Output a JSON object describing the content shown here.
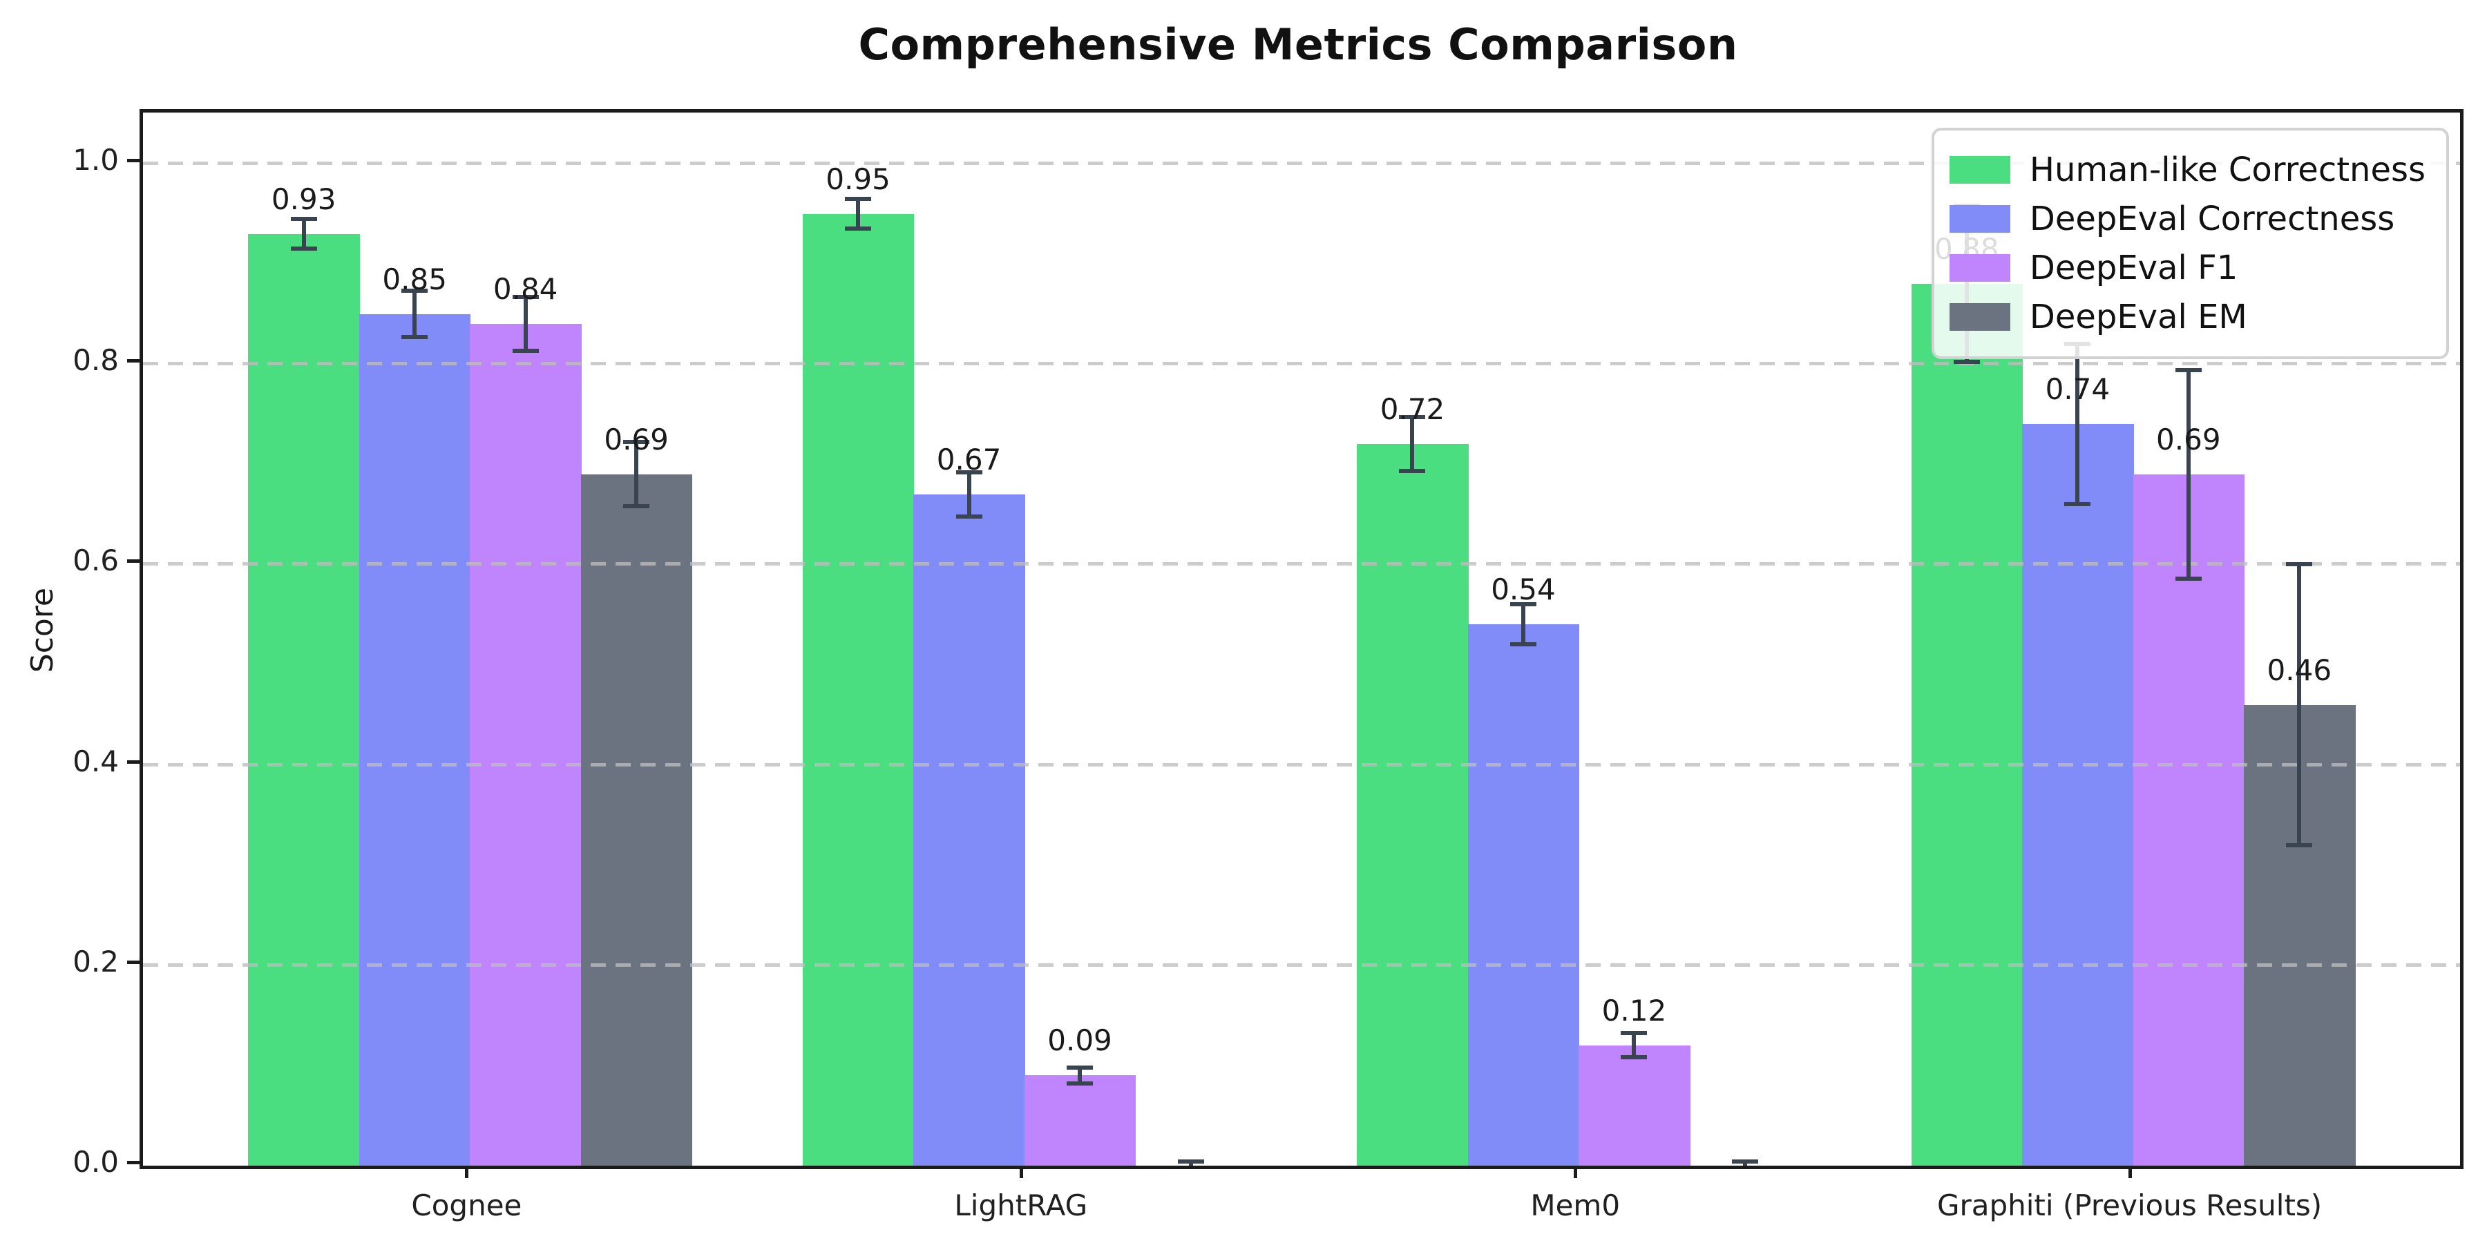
{
  "chart_data": {
    "type": "bar",
    "title": "Comprehensive Metrics Comparison",
    "ylabel": "Score",
    "xlabel": "",
    "categories": [
      "Cognee",
      "LightRAG",
      "Mem0",
      "Graphiti (Previous Results)"
    ],
    "series": [
      {
        "name": "Human-like Correctness",
        "color": "#4ade80",
        "values": [
          0.93,
          0.95,
          0.72,
          0.88
        ],
        "errors": [
          0.015,
          0.015,
          0.027,
          0.078
        ],
        "labels": [
          "0.93",
          "0.95",
          "0.72",
          "0.88"
        ]
      },
      {
        "name": "DeepEval Correctness",
        "color": "#818cf8",
        "values": [
          0.85,
          0.67,
          0.54,
          0.74
        ],
        "errors": [
          0.023,
          0.022,
          0.02,
          0.08
        ],
        "labels": [
          "0.85",
          "0.67",
          "0.54",
          "0.74"
        ]
      },
      {
        "name": "DeepEval F1",
        "color": "#c084fc",
        "values": [
          0.84,
          0.09,
          0.12,
          0.69
        ],
        "errors": [
          0.027,
          0.008,
          0.012,
          0.104
        ],
        "labels": [
          "0.84",
          "0.09",
          "0.12",
          "0.69"
        ]
      },
      {
        "name": "DeepEval EM",
        "color": "#6b7280",
        "values": [
          0.69,
          0.0,
          0.0,
          0.46
        ],
        "errors": [
          0.032,
          0.004,
          0.004,
          0.14
        ],
        "labels": [
          "0.69",
          "",
          "",
          "0.46"
        ]
      }
    ],
    "ytick_labels": [
      "0.0",
      "0.2",
      "0.4",
      "0.6",
      "0.8",
      "1.0"
    ],
    "yticks": [
      0.0,
      0.2,
      0.4,
      0.6,
      0.8,
      1.0
    ],
    "ylim": [
      0,
      1.05
    ],
    "grid": "horizontal-dashed",
    "legend_position": "upper-right",
    "bar_width_fraction": 0.2,
    "error_bar_color": "#3a4450"
  }
}
